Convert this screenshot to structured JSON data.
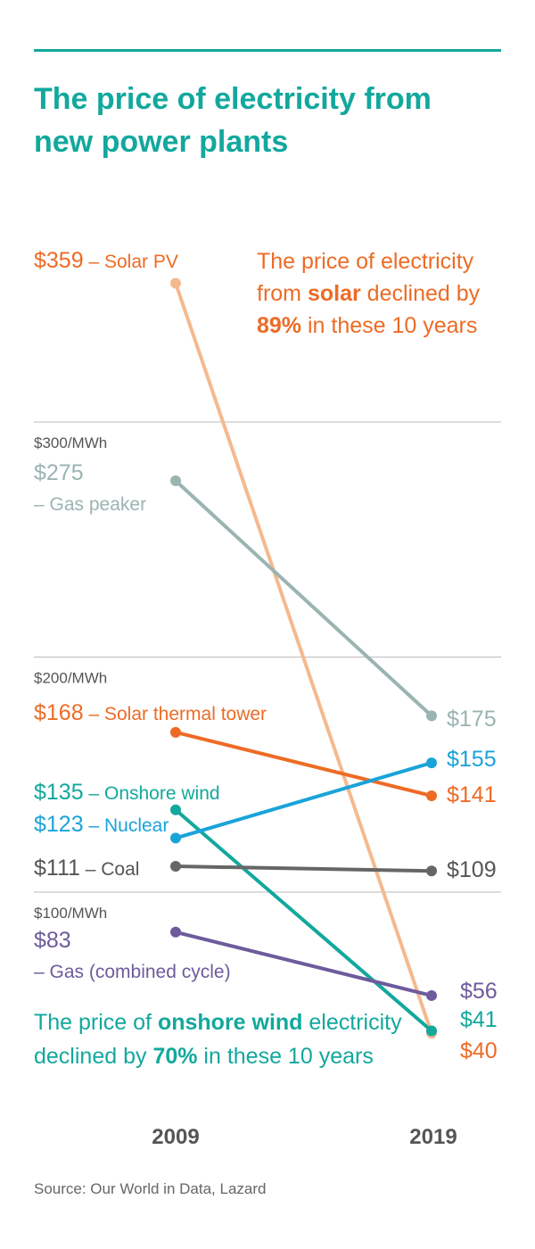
{
  "title_lines": [
    "The price of electricity from",
    "new power plants"
  ],
  "source": "Source: Our World in Data, Lazard",
  "colors": {
    "accent": "#12a89d",
    "grid": "#bbbbbb",
    "year_text": "#555555"
  },
  "chart_data": {
    "type": "line",
    "x": [
      "2009",
      "2019"
    ],
    "unit_ticks": [
      {
        "value": 300,
        "label": "$300/MWh"
      },
      {
        "value": 200,
        "label": "$200/MWh"
      },
      {
        "value": 100,
        "label": "$100/MWh"
      }
    ],
    "series": [
      {
        "key": "solar_pv",
        "name": "Solar PV",
        "values": [
          359,
          40
        ],
        "labels": [
          "$359",
          "$40"
        ],
        "color": "#f5b98e",
        "label_color": "#ed6b25",
        "name_color": "#ed6b25"
      },
      {
        "key": "gas_peaker",
        "name": "Gas peaker",
        "values": [
          275,
          175
        ],
        "labels": [
          "$275",
          "$175"
        ],
        "color": "#9ab4b1",
        "label_color": "#9ab4b1",
        "name_color": "#9ab4b1"
      },
      {
        "key": "solar_thermal",
        "name": "Solar thermal tower",
        "values": [
          168,
          141
        ],
        "labels": [
          "$168",
          "$141"
        ],
        "color": "#ed6b25",
        "label_color": "#ed6b25",
        "name_color": "#ed6b25"
      },
      {
        "key": "onshore_wind",
        "name": "Onshore wind",
        "values": [
          135,
          41
        ],
        "labels": [
          "$135",
          "$41"
        ],
        "color": "#12a89d",
        "label_color": "#12a89d",
        "name_color": "#12a89d"
      },
      {
        "key": "nuclear",
        "name": "Nuclear",
        "values": [
          123,
          155
        ],
        "labels": [
          "$123",
          "$155"
        ],
        "color": "#1aa3d9",
        "label_color": "#1aa3d9",
        "name_color": "#1aa3d9"
      },
      {
        "key": "coal",
        "name": "Coal",
        "values": [
          111,
          109
        ],
        "labels": [
          "$111",
          "$109"
        ],
        "color": "#666666",
        "label_color": "#555555",
        "name_color": "#555555"
      },
      {
        "key": "gas_cc",
        "name": "Gas (combined cycle)",
        "values": [
          83,
          56
        ],
        "labels": [
          "$83",
          "$56"
        ],
        "color": "#6d5b9c",
        "label_color": "#6d5b9c",
        "name_color": "#6d5b9c"
      }
    ],
    "annotations": [
      {
        "key": "solar",
        "color": "#ed6b25",
        "lines": [
          [
            {
              "t": "The price of electricity",
              "b": false
            }
          ],
          [
            {
              "t": "from ",
              "b": false
            },
            {
              "t": "solar",
              "b": true
            },
            {
              "t": " declined by",
              "b": false
            }
          ],
          [
            {
              "t": "89%",
              "b": true
            },
            {
              "t": " in these 10 years",
              "b": false
            }
          ]
        ]
      },
      {
        "key": "wind",
        "color": "#12a89d",
        "lines": [
          [
            {
              "t": "The price of ",
              "b": false
            },
            {
              "t": "onshore wind",
              "b": true
            },
            {
              "t": " electricity",
              "b": false
            }
          ],
          [
            {
              "t": "declined by ",
              "b": false
            },
            {
              "t": "70%",
              "b": true
            },
            {
              "t": " in these 10 years",
              "b": false
            }
          ]
        ]
      }
    ]
  }
}
